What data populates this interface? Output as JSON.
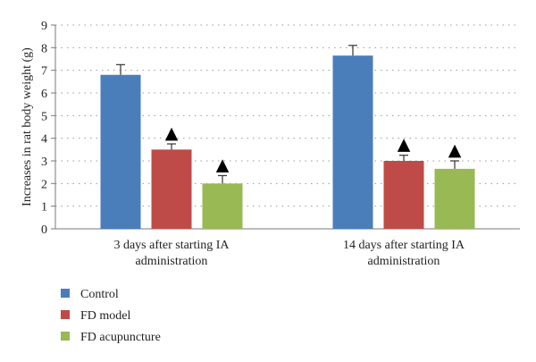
{
  "chart_data": {
    "type": "bar",
    "categories": [
      [
        "3 days after starting IA",
        "administration"
      ],
      [
        "14 days after starting IA",
        "administration"
      ]
    ],
    "series": [
      {
        "name": "Control",
        "color": "#4a7ebb",
        "values": [
          6.8,
          7.65
        ],
        "errors": [
          0.45,
          0.45
        ],
        "marker": [
          false,
          false
        ]
      },
      {
        "name": "FD model",
        "color": "#be4b48",
        "values": [
          3.5,
          3.0
        ],
        "errors": [
          0.25,
          0.25
        ],
        "marker": [
          true,
          true
        ]
      },
      {
        "name": "FD acupuncture",
        "color": "#98b954",
        "values": [
          2.0,
          2.65
        ],
        "errors": [
          0.35,
          0.35
        ],
        "marker": [
          true,
          true
        ]
      }
    ],
    "ylabel": "Increases in rat body weight (g)",
    "ylim": [
      0,
      9
    ],
    "yticks": [
      0,
      1,
      2,
      3,
      4,
      5,
      6,
      7,
      8,
      9
    ],
    "grid": true,
    "legend_position": "bottom-left",
    "significance_marker": "▲"
  }
}
